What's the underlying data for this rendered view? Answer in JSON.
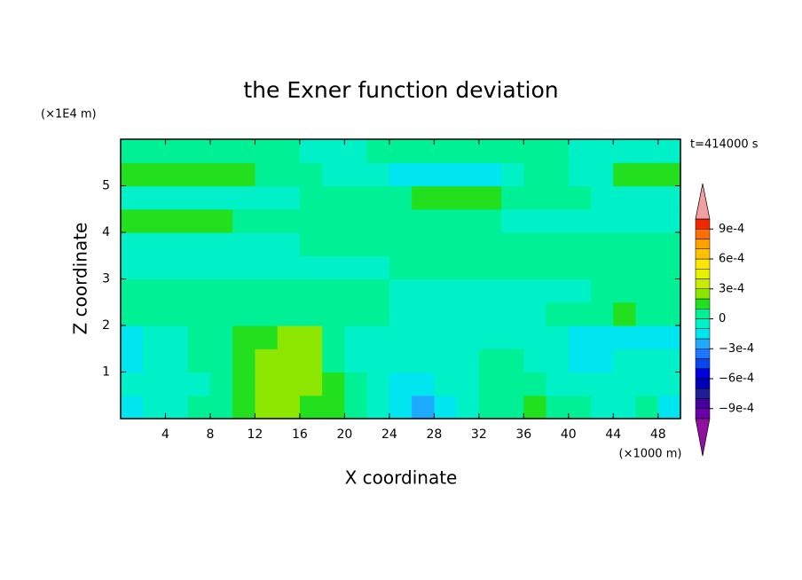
{
  "chart_data": {
    "type": "contour",
    "title": "the Exner function deviation",
    "x_label": "X coordinate",
    "y_label": "Z coordinate",
    "x_unit": "(×1000 m)",
    "y_unit": "(×1E4 m)",
    "time_label": "t=414000 s",
    "xlim": [
      0,
      50
    ],
    "ylim": [
      0,
      6
    ],
    "xticks": [
      4,
      8,
      12,
      16,
      20,
      24,
      28,
      32,
      36,
      40,
      44,
      48
    ],
    "yticks": [
      1,
      2,
      3,
      4,
      5
    ],
    "x": [
      1,
      3,
      5,
      7,
      9,
      11,
      13,
      15,
      17,
      19,
      21,
      23,
      25,
      27,
      29,
      31,
      33,
      35,
      37,
      39,
      41,
      43,
      45,
      47,
      49
    ],
    "y": [
      0.25,
      0.75,
      1.25,
      1.75,
      2.25,
      2.75,
      3.25,
      3.75,
      4.25,
      4.75,
      5.25,
      5.75
    ],
    "z": [
      [
        -0.00015,
        -5e-05,
        -5e-05,
        5e-05,
        5e-05,
        0.00015,
        0.00025,
        0.00025,
        0.00015,
        0.00015,
        5e-05,
        -5e-05,
        -0.00015,
        -0.00025,
        -0.00015,
        -5e-05,
        5e-05,
        5e-05,
        0.00015,
        5e-05,
        5e-05,
        -5e-05,
        -5e-05,
        5e-05,
        -0.00015
      ],
      [
        -5e-05,
        -5e-05,
        -5e-05,
        -5e-05,
        5e-05,
        0.00015,
        0.00025,
        0.00025,
        0.00025,
        0.00015,
        5e-05,
        -5e-05,
        -0.00015,
        -0.00015,
        -5e-05,
        -5e-05,
        5e-05,
        5e-05,
        5e-05,
        -5e-05,
        -5e-05,
        -5e-05,
        -5e-05,
        -5e-05,
        -5e-05
      ],
      [
        -0.00015,
        -5e-05,
        -5e-05,
        5e-05,
        5e-05,
        0.00015,
        0.00025,
        0.00025,
        0.00025,
        5e-05,
        -5e-05,
        -5e-05,
        -5e-05,
        -5e-05,
        -5e-05,
        -5e-05,
        5e-05,
        5e-05,
        -5e-05,
        -5e-05,
        -0.00015,
        -0.00015,
        -5e-05,
        -5e-05,
        -5e-05
      ],
      [
        -0.00015,
        -5e-05,
        -5e-05,
        5e-05,
        5e-05,
        0.00015,
        0.00015,
        0.00025,
        0.00025,
        5e-05,
        -5e-05,
        -5e-05,
        -5e-05,
        -5e-05,
        -5e-05,
        -5e-05,
        -5e-05,
        -5e-05,
        -5e-05,
        -5e-05,
        -0.00015,
        -0.00015,
        -0.00015,
        -0.00015,
        -0.00015
      ],
      [
        5e-05,
        5e-05,
        5e-05,
        5e-05,
        5e-05,
        5e-05,
        5e-05,
        5e-05,
        5e-05,
        5e-05,
        5e-05,
        5e-05,
        -5e-05,
        -5e-05,
        -5e-05,
        -5e-05,
        -5e-05,
        -5e-05,
        -5e-05,
        5e-05,
        5e-05,
        5e-05,
        0.00015,
        5e-05,
        5e-05
      ],
      [
        5e-05,
        5e-05,
        5e-05,
        5e-05,
        5e-05,
        5e-05,
        5e-05,
        5e-05,
        5e-05,
        5e-05,
        5e-05,
        5e-05,
        -5e-05,
        -5e-05,
        -5e-05,
        -5e-05,
        -5e-05,
        -5e-05,
        -5e-05,
        -5e-05,
        -5e-05,
        5e-05,
        5e-05,
        5e-05,
        5e-05
      ],
      [
        -5e-05,
        -5e-05,
        -5e-05,
        -5e-05,
        -5e-05,
        -5e-05,
        -5e-05,
        -5e-05,
        -5e-05,
        -5e-05,
        -5e-05,
        -5e-05,
        5e-05,
        5e-05,
        5e-05,
        5e-05,
        5e-05,
        5e-05,
        5e-05,
        5e-05,
        5e-05,
        5e-05,
        5e-05,
        5e-05,
        5e-05
      ],
      [
        -5e-05,
        -5e-05,
        -5e-05,
        -5e-05,
        -5e-05,
        -5e-05,
        -5e-05,
        -5e-05,
        5e-05,
        5e-05,
        5e-05,
        5e-05,
        5e-05,
        5e-05,
        5e-05,
        5e-05,
        5e-05,
        5e-05,
        5e-05,
        5e-05,
        5e-05,
        5e-05,
        5e-05,
        5e-05,
        5e-05
      ],
      [
        0.00015,
        0.00015,
        0.00015,
        0.00015,
        0.00015,
        5e-05,
        5e-05,
        5e-05,
        5e-05,
        5e-05,
        5e-05,
        5e-05,
        5e-05,
        5e-05,
        5e-05,
        5e-05,
        5e-05,
        -5e-05,
        -5e-05,
        -5e-05,
        -5e-05,
        -5e-05,
        -5e-05,
        -5e-05,
        -5e-05
      ],
      [
        -5e-05,
        -5e-05,
        -5e-05,
        -5e-05,
        -5e-05,
        -5e-05,
        -5e-05,
        -5e-05,
        5e-05,
        5e-05,
        5e-05,
        5e-05,
        5e-05,
        0.00015,
        0.00015,
        0.00015,
        0.00015,
        5e-05,
        5e-05,
        5e-05,
        5e-05,
        -5e-05,
        -5e-05,
        -5e-05,
        -5e-05
      ],
      [
        0.00015,
        0.00015,
        0.00015,
        0.00015,
        0.00015,
        0.00015,
        5e-05,
        5e-05,
        5e-05,
        -5e-05,
        -5e-05,
        -5e-05,
        -0.00015,
        -0.00015,
        -0.00015,
        -0.00015,
        -0.00015,
        -5e-05,
        5e-05,
        5e-05,
        -5e-05,
        -5e-05,
        0.00015,
        0.00015,
        0.00015
      ],
      [
        5e-05,
        5e-05,
        5e-05,
        5e-05,
        5e-05,
        5e-05,
        5e-05,
        5e-05,
        -5e-05,
        -5e-05,
        -5e-05,
        5e-05,
        5e-05,
        5e-05,
        5e-05,
        5e-05,
        5e-05,
        5e-05,
        5e-05,
        5e-05,
        -5e-05,
        -5e-05,
        -5e-05,
        -5e-05,
        -5e-05
      ]
    ],
    "levels": [
      -0.001,
      -0.0009,
      -0.0008,
      -0.0007,
      -0.0006,
      -0.0005,
      -0.0004,
      -0.0003,
      -0.0002,
      -0.0001,
      0,
      0.0001,
      0.0002,
      0.0003,
      0.0004,
      0.0005,
      0.0006,
      0.0007,
      0.0008,
      0.0009,
      0.001
    ],
    "colors": [
      "#6a00a8",
      "#46009c",
      "#1e1e96",
      "#0000b4",
      "#0000dc",
      "#0a46f0",
      "#1e78ff",
      "#1eaaff",
      "#00e6f0",
      "#00f0c8",
      "#00f096",
      "#22e01e",
      "#8ce600",
      "#c8eb00",
      "#e6f000",
      "#ffe600",
      "#ffc000",
      "#ffa000",
      "#ff6e00",
      "#f02800"
    ],
    "under_color": "#9010a0",
    "over_color": "#f0a0a0",
    "cbticks": [
      {
        "value": -0.0009,
        "label": "−9e-4"
      },
      {
        "value": -0.0006,
        "label": "−6e-4"
      },
      {
        "value": -0.0003,
        "label": "−3e-4"
      },
      0,
      {
        "value": 0.0003,
        "label": "3e-4"
      },
      {
        "value": 0.0006,
        "label": "6e-4"
      },
      {
        "value": 0.0009,
        "label": "9e-4"
      }
    ]
  }
}
